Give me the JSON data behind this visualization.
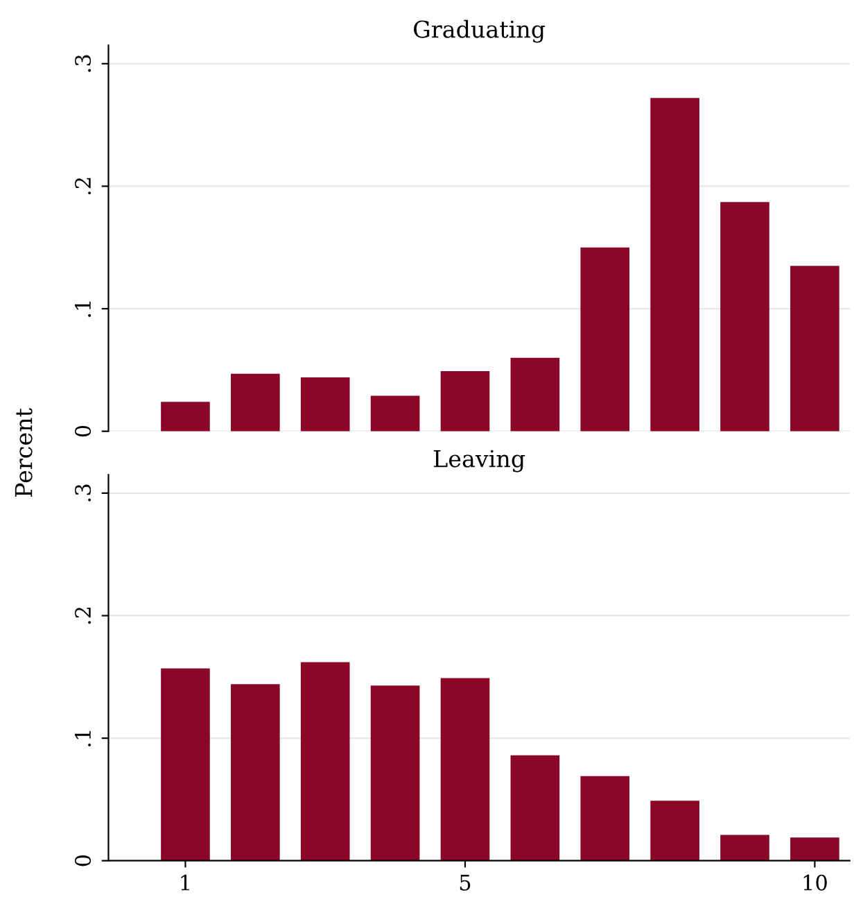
{
  "chart_data": [
    {
      "type": "bar",
      "title": "Graduating",
      "ylabel": "Percent",
      "x": [
        1,
        2,
        3,
        4,
        5,
        6,
        7,
        8,
        9,
        10
      ],
      "series": [
        {
          "color": "#8b0727",
          "values": [
            0.024,
            0.047,
            0.044,
            0.029,
            0.049,
            0.06,
            0.15,
            0.272,
            0.187,
            0.135
          ]
        }
      ],
      "xlim": [
        -0.1,
        10.5
      ],
      "xticks": [
        1,
        5,
        10
      ],
      "ylim": [
        0,
        0.315
      ],
      "yticks": [
        0,
        {
          "value": 0.1,
          "label": ".1"
        },
        {
          "value": 0.2,
          "label": ".2"
        },
        {
          "value": 0.3,
          "label": ".3"
        }
      ],
      "grid": "y",
      "tick_labels": "y"
    },
    {
      "type": "bar",
      "title": "Leaving",
      "x": [
        1,
        2,
        3,
        4,
        5,
        6,
        7,
        8,
        9,
        10
      ],
      "series": [
        {
          "color": "#8b0727",
          "values": [
            0.157,
            0.144,
            0.162,
            0.143,
            0.149,
            0.086,
            0.069,
            0.049,
            0.021,
            0.019
          ]
        }
      ],
      "xlim": [
        -0.1,
        10.5
      ],
      "xticks": [
        1,
        5,
        10
      ],
      "ylim": [
        0,
        0.315
      ],
      "yticks": [
        0,
        {
          "value": 0.1,
          "label": ".1"
        },
        {
          "value": 0.2,
          "label": ".2"
        },
        {
          "value": 0.3,
          "label": ".3"
        }
      ],
      "grid": "y"
    }
  ]
}
